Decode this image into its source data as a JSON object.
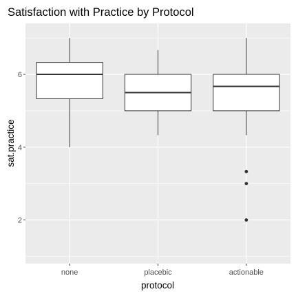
{
  "chart_data": {
    "type": "boxplot",
    "title": "Satisfaction with Practice by Protocol",
    "xlabel": "protocol",
    "ylabel": "sat.practice",
    "categories": [
      "none",
      "placebic",
      "actionable"
    ],
    "ylim": [
      0.8,
      7.4
    ],
    "yticks": [
      2,
      4,
      6
    ],
    "grid": true,
    "boxes": [
      {
        "category": "none",
        "whisker_low": 4.0,
        "q1": 5.33,
        "median": 6.0,
        "q3": 6.33,
        "whisker_high": 7.0,
        "outliers": []
      },
      {
        "category": "placebic",
        "whisker_low": 4.33,
        "q1": 5.0,
        "median": 5.5,
        "q3": 6.0,
        "whisker_high": 6.67,
        "outliers": []
      },
      {
        "category": "actionable",
        "whisker_low": 4.33,
        "q1": 5.0,
        "median": 5.67,
        "q3": 6.0,
        "whisker_high": 7.0,
        "outliers": [
          3.33,
          3.0,
          2.0
        ]
      }
    ],
    "colors": {
      "panel": "#ebebeb",
      "grid": "#ffffff",
      "box_fill": "#ffffff",
      "line": "#333333",
      "outlier": "#333333"
    }
  }
}
